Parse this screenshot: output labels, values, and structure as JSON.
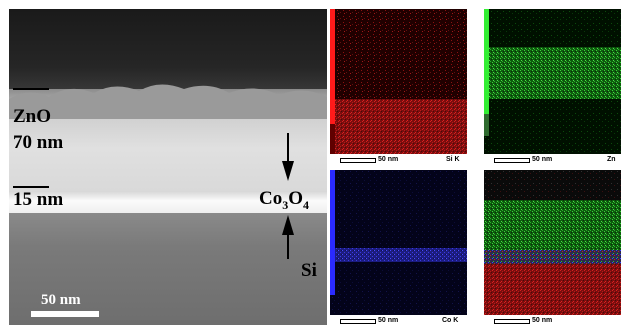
{
  "figure": {
    "tem": {
      "zno_label": "ZnO",
      "zno_thickness": "70 nm",
      "co_thickness": "15 nm",
      "co_label_main": "Co",
      "co_label_sub1": "3",
      "co_label_o": "O",
      "co_label_sub2": "4",
      "si_label": "Si",
      "scale_label": "50 nm"
    },
    "maps": [
      {
        "scale": "50 nm",
        "element": "Si K"
      },
      {
        "scale": "50 nm",
        "element": "Zn"
      },
      {
        "scale": "50 nm",
        "element": "Co K"
      },
      {
        "scale": "50 nm",
        "element": ""
      }
    ],
    "colors": {
      "si": "#e01818",
      "zn": "#22cc22",
      "co": "#3a3aff"
    }
  }
}
